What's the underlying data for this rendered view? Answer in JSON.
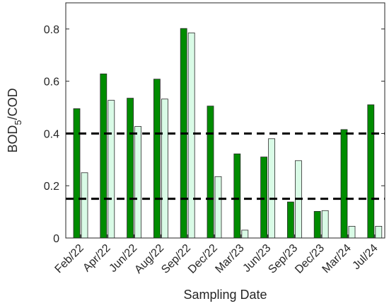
{
  "chart_data": {
    "type": "bar",
    "xlabel": "Sampling Date",
    "ylabel_main": "BOD",
    "ylabel_sub": "5",
    "ylabel_tail": "/COD",
    "ylim": [
      0,
      0.9
    ],
    "yticks": [
      0,
      0.2,
      0.4,
      0.6,
      0.8
    ],
    "ytick_labels": [
      "0",
      "0.2",
      "0.4",
      "0.6",
      "0.8"
    ],
    "grid": false,
    "legend": "none",
    "categories": [
      "Feb/22",
      "Apr/22",
      "Jun/22",
      "Aug/22",
      "Sep/22",
      "Dec/22",
      "Mar/23",
      "Jun/23",
      "Sep/23",
      "Dec/23",
      "Mar/24",
      "Jul/24"
    ],
    "series": [
      {
        "color": "#008c00",
        "values": [
          0.495,
          0.628,
          0.535,
          0.608,
          0.802,
          0.505,
          0.322,
          0.31,
          0.138,
          0.102,
          0.415,
          0.51
        ]
      },
      {
        "color": "#d9fbe6",
        "values": [
          0.25,
          0.527,
          0.427,
          0.532,
          0.785,
          0.235,
          0.03,
          0.38,
          0.296,
          0.105,
          0.045,
          0.045
        ]
      }
    ],
    "reference_lines": [
      {
        "y": 0.4,
        "style": "dashed"
      },
      {
        "y": 0.15,
        "style": "dashed"
      }
    ]
  }
}
